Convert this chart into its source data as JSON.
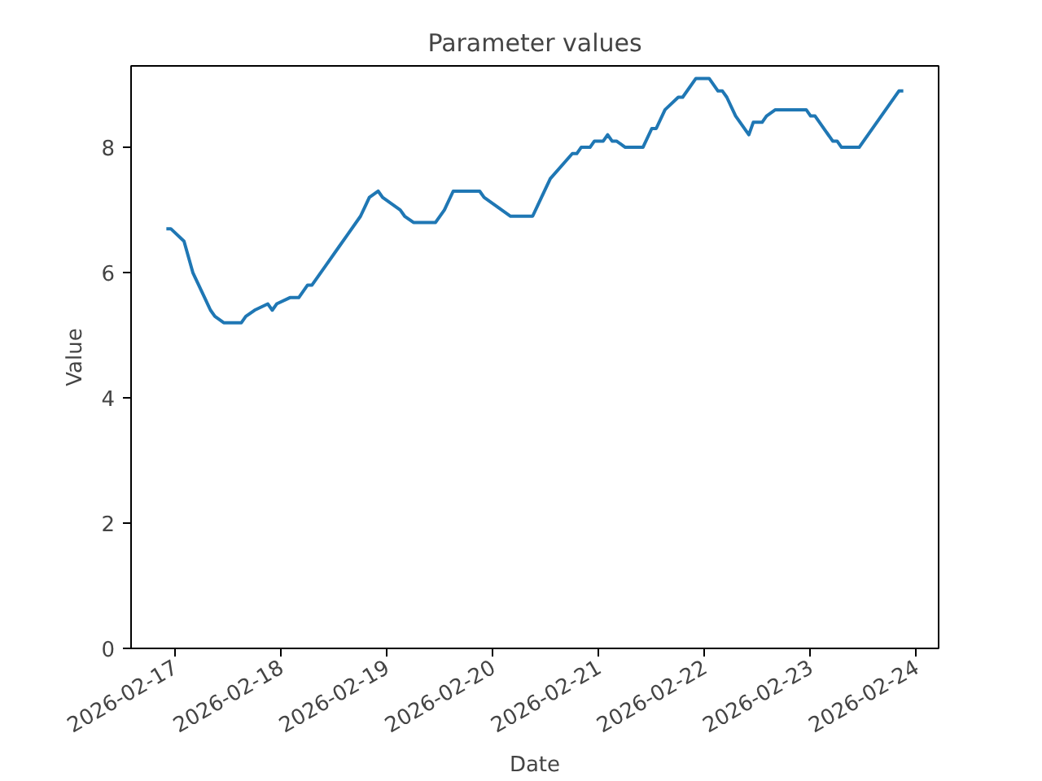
{
  "chart_data": {
    "type": "line",
    "title": "Parameter values",
    "xlabel": "Date",
    "ylabel": "Value",
    "x": [
      "2026-02-16T22:00",
      "2026-02-16T23:00",
      "2026-02-17T02:00",
      "2026-02-17T04:00",
      "2026-02-17T06:00",
      "2026-02-17T08:00",
      "2026-02-17T09:00",
      "2026-02-17T11:00",
      "2026-02-17T15:00",
      "2026-02-17T16:00",
      "2026-02-17T18:00",
      "2026-02-17T21:00",
      "2026-02-17T22:00",
      "2026-02-17T23:00",
      "2026-02-18T02:00",
      "2026-02-18T04:00",
      "2026-02-18T06:00",
      "2026-02-18T07:00",
      "2026-02-18T10:00",
      "2026-02-18T13:00",
      "2026-02-18T15:00",
      "2026-02-18T18:00",
      "2026-02-18T20:00",
      "2026-02-18T22:00",
      "2026-02-18T23:00",
      "2026-02-19T01:00",
      "2026-02-19T03:00",
      "2026-02-19T04:00",
      "2026-02-19T06:00",
      "2026-02-19T11:00",
      "2026-02-19T13:00",
      "2026-02-19T15:00",
      "2026-02-19T21:00",
      "2026-02-19T22:00",
      "2026-02-20T00:00",
      "2026-02-20T02:00",
      "2026-02-20T04:00",
      "2026-02-20T09:00",
      "2026-02-20T11:00",
      "2026-02-20T13:00",
      "2026-02-20T18:00",
      "2026-02-20T19:00",
      "2026-02-20T20:00",
      "2026-02-20T22:00",
      "2026-02-20T23:00",
      "2026-02-21T01:00",
      "2026-02-21T02:00",
      "2026-02-21T03:00",
      "2026-02-21T04:00",
      "2026-02-21T06:00",
      "2026-02-21T10:00",
      "2026-02-21T12:00",
      "2026-02-21T13:00",
      "2026-02-21T15:00",
      "2026-02-21T18:00",
      "2026-02-21T19:00",
      "2026-02-21T22:00",
      "2026-02-22T01:00",
      "2026-02-22T03:00",
      "2026-02-22T04:00",
      "2026-02-22T05:00",
      "2026-02-22T07:00",
      "2026-02-22T10:00",
      "2026-02-22T11:00",
      "2026-02-22T13:00",
      "2026-02-22T14:00",
      "2026-02-22T16:00",
      "2026-02-22T23:00",
      "2026-02-23T00:00",
      "2026-02-23T01:00",
      "2026-02-23T05:00",
      "2026-02-23T06:00",
      "2026-02-23T07:00",
      "2026-02-23T11:00",
      "2026-02-23T20:00",
      "2026-02-23T21:00"
    ],
    "series": [
      {
        "color": "#1f77b4",
        "values": [
          6.7,
          6.7,
          6.5,
          6.0,
          5.7,
          5.4,
          5.3,
          5.2,
          5.2,
          5.3,
          5.4,
          5.5,
          5.4,
          5.5,
          5.6,
          5.6,
          5.8,
          5.8,
          6.1,
          6.4,
          6.6,
          6.9,
          7.2,
          7.3,
          7.2,
          7.1,
          7.0,
          6.9,
          6.8,
          6.8,
          7.0,
          7.3,
          7.3,
          7.2,
          7.1,
          7.0,
          6.9,
          6.9,
          7.2,
          7.5,
          7.9,
          7.9,
          8.0,
          8.0,
          8.1,
          8.1,
          8.2,
          8.1,
          8.1,
          8.0,
          8.0,
          8.3,
          8.3,
          8.6,
          8.8,
          8.8,
          9.1,
          9.1,
          8.9,
          8.9,
          8.8,
          8.5,
          8.2,
          8.4,
          8.4,
          8.5,
          8.6,
          8.6,
          8.5,
          8.5,
          8.1,
          8.1,
          8.0,
          8.0,
          8.9,
          8.9
        ]
      }
    ],
    "xlim": [
      "2026-02-16T14:00",
      "2026-02-24T05:00"
    ],
    "xticks": [
      "2026-02-17",
      "2026-02-18",
      "2026-02-19",
      "2026-02-20",
      "2026-02-21",
      "2026-02-22",
      "2026-02-23",
      "2026-02-24"
    ],
    "ylim": [
      0,
      9.3
    ],
    "yticks": [
      0,
      2,
      4,
      6,
      8
    ],
    "grid": false
  }
}
